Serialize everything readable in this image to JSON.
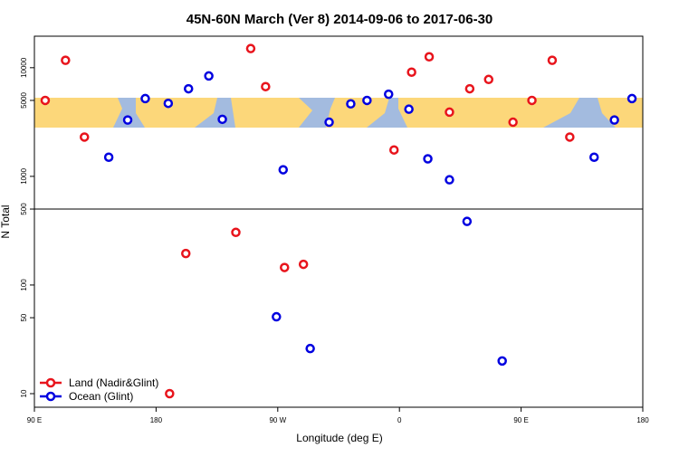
{
  "chart_data": {
    "type": "scatter",
    "title": "45N-60N March (Ver 8)   2014-09-06 to 2017-06-30",
    "xlabel": "Longitude (deg E)",
    "ylabel": "N Total",
    "xlim": [
      90,
      540
    ],
    "ylim": [
      7.5,
      19500
    ],
    "log_y": true,
    "xticks": [
      {
        "value": 90,
        "label": "90 E"
      },
      {
        "value": 180,
        "label": "180"
      },
      {
        "value": 270,
        "label": "90 W"
      },
      {
        "value": 360,
        "label": "0"
      },
      {
        "value": 450,
        "label": "90 E"
      },
      {
        "value": 540,
        "label": "180"
      }
    ],
    "yticks": [
      10,
      50,
      100,
      500,
      1000,
      5000,
      10000
    ],
    "reference_line": 500,
    "legend": "bottom-left",
    "series": [
      {
        "name": "Land (Nadir&Glint)",
        "color": "#e8141c",
        "x": [
          98,
          113,
          127,
          190,
          202,
          239,
          250,
          261,
          275,
          289,
          356,
          369,
          382,
          397,
          412,
          426,
          444,
          458,
          473,
          486
        ],
        "values": [
          5000,
          11700,
          2300,
          10,
          195,
          305,
          15000,
          6700,
          145,
          155,
          1750,
          9100,
          12600,
          3900,
          6400,
          7800,
          3150,
          5000,
          11700,
          2300
        ]
      },
      {
        "name": "Ocean (Glint)",
        "color": "#0000e0",
        "x": [
          145,
          159,
          172,
          189,
          204,
          219,
          229,
          274,
          269,
          294,
          308,
          324,
          336,
          352,
          367,
          381,
          397,
          410,
          436,
          504,
          519,
          532
        ],
        "values": [
          1500,
          3300,
          5200,
          4700,
          6400,
          8400,
          3350,
          1150,
          51,
          26,
          3150,
          4650,
          5000,
          5700,
          4150,
          1450,
          930,
          385,
          20,
          1500,
          3300,
          5200
        ]
      }
    ]
  }
}
